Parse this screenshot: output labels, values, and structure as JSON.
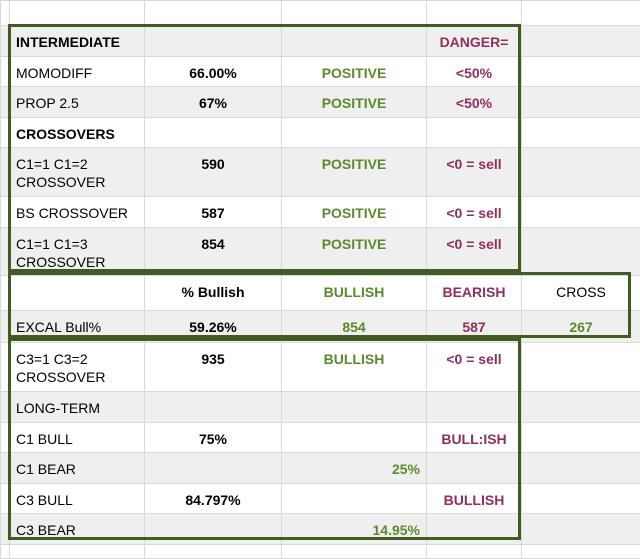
{
  "colors": {
    "positive": "#5b8a2d",
    "negative": "#8e2f5c",
    "frame": "#3f5d20",
    "stripe": "#efefef"
  },
  "rows": {
    "intermediate": {
      "label": "INTERMEDIATE",
      "danger": "DANGER="
    },
    "momodiff": {
      "label": "MOMODIFF",
      "value": "66.00%",
      "status": "POSITIVE",
      "threshold": "<50%"
    },
    "prop25": {
      "label": "PROP 2.5",
      "value": "67%",
      "status": "POSITIVE",
      "threshold": "<50%"
    },
    "crossovers": {
      "label": "CROSSOVERS"
    },
    "c1c2": {
      "label": "C1=1 C1=2 CROSSOVER",
      "value": "590",
      "status": "POSITIVE",
      "threshold": "<0 = sell"
    },
    "bs": {
      "label": "BS CROSSOVER",
      "value": "587",
      "status": "POSITIVE",
      "threshold": "<0 = sell"
    },
    "c1c3": {
      "label": "C1=1 C1=3 CROSSOVER",
      "value": "854",
      "status": "POSITIVE",
      "threshold": "<0 = sell"
    },
    "excal_head": {
      "pct": "% Bullish",
      "bull": "BULLISH",
      "bear": "BEARISH",
      "cross": "CROSS"
    },
    "excal": {
      "label": "EXCAL Bull%",
      "pct": "59.26%",
      "bull": "854",
      "bear": "587",
      "cross": "267"
    },
    "c3c2": {
      "label": "C3=1 C3=2 CROSSOVER",
      "value": "935",
      "status": "BULLISH",
      "threshold": "<0 = sell"
    },
    "longterm": {
      "label": "LONG-TERM"
    },
    "c1bull": {
      "label": "C1 BULL",
      "value": "75%",
      "status": "BULL:ISH"
    },
    "c1bear": {
      "label": "C1 BEAR",
      "pct": "25%"
    },
    "c3bull": {
      "label": "C3 BULL",
      "value": "84.797%",
      "status": "BULLISH"
    },
    "c3bear": {
      "label": "C3 BEAR",
      "pct": "14.95%"
    }
  }
}
